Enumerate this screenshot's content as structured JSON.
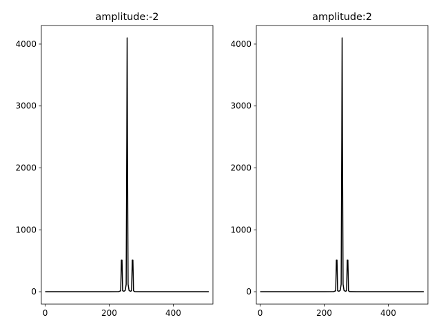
{
  "figure": {
    "background": "#ffffff"
  },
  "chart_data": [
    {
      "type": "line",
      "title": "amplitude:-2",
      "xlabel": "",
      "ylabel": "",
      "xlim": [
        -12,
        524
      ],
      "ylim": [
        -200,
        4300
      ],
      "xticks": [
        0,
        200,
        400
      ],
      "yticks": [
        0,
        1000,
        2000,
        3000,
        4000
      ],
      "grid": false,
      "series": [
        {
          "color": "#000000",
          "x": [
            0,
            100,
            200,
            230,
            236,
            238,
            240,
            242,
            246,
            250,
            253,
            255,
            256,
            257,
            259,
            262,
            266,
            270,
            272,
            274,
            276,
            280,
            300,
            400,
            511
          ],
          "y": [
            0,
            0,
            0,
            2,
            15,
            510,
            510,
            15,
            8,
            20,
            120,
            2500,
            4100,
            2500,
            120,
            20,
            8,
            15,
            510,
            510,
            15,
            2,
            0,
            0,
            0
          ]
        }
      ]
    },
    {
      "type": "line",
      "title": "amplitude:2",
      "xlabel": "",
      "ylabel": "",
      "xlim": [
        -12,
        524
      ],
      "ylim": [
        -200,
        4300
      ],
      "xticks": [
        0,
        200,
        400
      ],
      "yticks": [
        0,
        1000,
        2000,
        3000,
        4000
      ],
      "grid": false,
      "series": [
        {
          "color": "#000000",
          "x": [
            0,
            100,
            200,
            230,
            236,
            238,
            240,
            242,
            246,
            250,
            253,
            255,
            256,
            257,
            259,
            262,
            266,
            270,
            272,
            274,
            276,
            280,
            300,
            400,
            511
          ],
          "y": [
            0,
            0,
            0,
            2,
            15,
            510,
            510,
            15,
            8,
            20,
            120,
            2500,
            4100,
            2500,
            120,
            20,
            8,
            15,
            510,
            510,
            15,
            2,
            0,
            0,
            0
          ]
        }
      ]
    }
  ]
}
